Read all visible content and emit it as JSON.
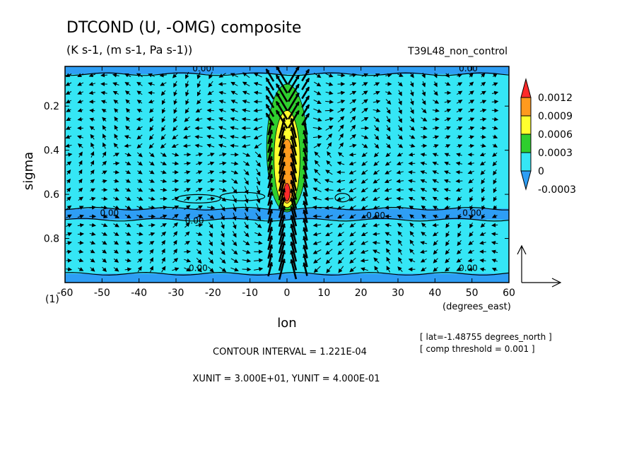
{
  "header": {
    "title": "DTCOND (U, -OMG) composite",
    "subtitle": "(K s-1, (m s-1, Pa s-1))",
    "experiment": "T39L48_non_control"
  },
  "footer": {
    "contour_interval": "CONTOUR INTERVAL = 1.221E-04",
    "units": "XUNIT = 3.000E+01, YUNIT = 4.000E-01",
    "lat_note": "[ lat=-1.48755 degrees_north ]",
    "threshold_note": "[ comp threshold = 0.001 ]"
  },
  "chart_data": {
    "type": "heatmap",
    "title": "DTCOND (U, -OMG) composite",
    "xlabel": "lon",
    "xunit_label": "(degrees_east)",
    "ylabel": "sigma",
    "y_corner_label": "(1)",
    "xlim": [
      -60,
      60
    ],
    "ylim": [
      0.02,
      1.0
    ],
    "y_inverted": true,
    "x_ticks": [
      -60,
      -50,
      -40,
      -30,
      -20,
      -10,
      0,
      10,
      20,
      30,
      40,
      50,
      60
    ],
    "y_ticks": [
      0.2,
      0.4,
      0.6,
      0.8
    ],
    "colorbar": {
      "levels": [
        "0.0012",
        "0.0009",
        "0.0006",
        "0.0003",
        "0",
        "-0.0003"
      ],
      "colors": [
        "#ff2a2a",
        "#ff9a1e",
        "#ffff2e",
        "#2ecf2e",
        "#35e6f5",
        "#2e9ef5"
      ]
    },
    "contour_labels": [
      {
        "text": "0.00",
        "x": -23,
        "y": 0.03
      },
      {
        "text": "0.00",
        "x": 49,
        "y": 0.03
      },
      {
        "text": "0.00",
        "x": -48,
        "y": 0.685
      },
      {
        "text": "0.00",
        "x": -25,
        "y": 0.72
      },
      {
        "text": "0.00",
        "x": 24,
        "y": 0.695
      },
      {
        "text": "0.00",
        "x": 50,
        "y": 0.685
      },
      {
        "text": "0.00",
        "x": -24,
        "y": 0.935
      },
      {
        "text": "0.00",
        "x": 49,
        "y": 0.935
      }
    ],
    "field_bands": [
      {
        "y0": 0.02,
        "y1": 0.055,
        "level": "-0.0003"
      },
      {
        "y0": 0.665,
        "y1": 0.715,
        "level": "-0.0003"
      },
      {
        "y0": 0.96,
        "y1": 1.0,
        "level": "-0.0003"
      }
    ],
    "heating_core": [
      {
        "x0": -5.5,
        "x1": 5.5,
        "y0": 0.1,
        "y1": 0.68,
        "level": "0.0003"
      },
      {
        "x0": -3.5,
        "x1": 3.5,
        "y0": 0.22,
        "y1": 0.66,
        "level": "0.0006"
      },
      {
        "x0": -2.0,
        "x1": 2.0,
        "y0": 0.35,
        "y1": 0.64,
        "level": "0.0009"
      },
      {
        "x0": -0.8,
        "x1": 0.8,
        "y0": 0.55,
        "y1": 0.63,
        "level": "0.0012"
      }
    ]
  }
}
